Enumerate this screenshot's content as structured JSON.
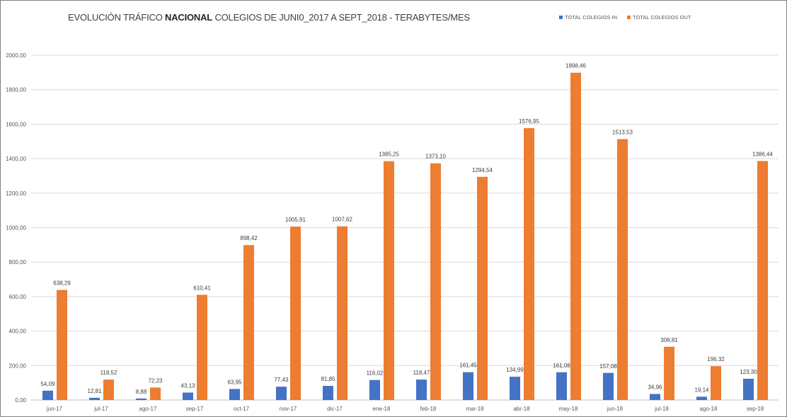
{
  "chart_data": {
    "type": "bar",
    "title_prefix": "EVOLUCIÓN TRÁFICO ",
    "title_bold": "NACIONAL",
    "title_suffix": " COLEGIOS DE JUNI0_2017 A SEPT_2018 -  TERABYTES/MES",
    "categories": [
      "jun-17",
      "jul-17",
      "ago-17",
      "sep-17",
      "oct-17",
      "nov-17",
      "dic-17",
      "ene-18",
      "feb-18",
      "mar-18",
      "abr-18",
      "may-18",
      "jun-18",
      "jul-18",
      "ago-18",
      "sep-18"
    ],
    "series": [
      {
        "name": "TOTAL COLEGIOS IN",
        "color": "#4472c4",
        "values": [
          54.09,
          12.81,
          8.88,
          43.13,
          63.95,
          77.43,
          81.85,
          116.02,
          118.47,
          161.45,
          134.99,
          161.08,
          157.08,
          34.96,
          19.14,
          123.3
        ],
        "labels": [
          "54,09",
          "12,81",
          "8,88",
          "43,13",
          "63,95",
          "77,43",
          "81,85",
          "116,02",
          "118,47",
          "161,45",
          "134,99",
          "161,08",
          "157,08",
          "34,96",
          "19,14",
          "123,30"
        ]
      },
      {
        "name": "TOTAL COLEGIOS OUT",
        "color": "#ed7d31",
        "values": [
          638.29,
          118.52,
          72.23,
          610.41,
          898.42,
          1005.91,
          1007.62,
          1385.25,
          1373.1,
          1294.54,
          1576.95,
          1898.46,
          1513.53,
          308.81,
          196.32,
          1386.44
        ],
        "labels": [
          "638,29",
          "118,52",
          "72,23",
          "610,41",
          "898,42",
          "1005,91",
          "1007,62",
          "1385,25",
          "1373,10",
          "1294,54",
          "1576,95",
          "1898,46",
          "1513,53",
          "308,81",
          "196,32",
          "1386,44"
        ]
      }
    ],
    "yticks": [
      "0,00",
      "200,00",
      "400,00",
      "600,00",
      "800,00",
      "1000,00",
      "1200,00",
      "1400,00",
      "1600,00",
      "1800,00",
      "2000,00"
    ],
    "ylim": [
      0,
      2000
    ],
    "grid": true,
    "legend": "top-right"
  }
}
